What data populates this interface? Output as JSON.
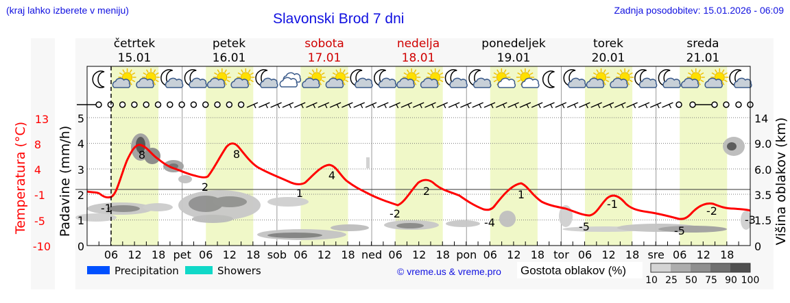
{
  "header": {
    "left_note": "(kraj lahko izberete v meniju)",
    "title": "Slavonski Brod 7 dni",
    "updated": "Zadnja posodobitev: 15.01.2026 - 06:09"
  },
  "days": [
    {
      "name": "četrtek",
      "date": "15.01",
      "weekend": false
    },
    {
      "name": "petek",
      "date": "16.01",
      "weekend": false
    },
    {
      "name": "sobota",
      "date": "17.01",
      "weekend": true
    },
    {
      "name": "nedelja",
      "date": "18.01",
      "weekend": true
    },
    {
      "name": "ponedeljek",
      "date": "19.01",
      "weekend": false
    },
    {
      "name": "torek",
      "date": "20.01",
      "weekend": false
    },
    {
      "name": "sreda",
      "date": "21.01",
      "weekend": false
    }
  ],
  "x_ticks": [
    "06",
    "12",
    "18",
    "pet",
    "06",
    "12",
    "18",
    "sob",
    "06",
    "12",
    "18",
    "ned",
    "06",
    "12",
    "18",
    "pon",
    "06",
    "12",
    "18",
    "tor",
    "06",
    "12",
    "18",
    "sre",
    "06",
    "12",
    "18"
  ],
  "axes": {
    "temp_label": "Temperatura (°C)",
    "temp_ticks": [
      "13",
      "8",
      "4",
      "-1",
      "-5",
      "-10"
    ],
    "precip_label": "Padavine (mm/h)",
    "precip_ticks": [
      "5",
      "4",
      "3",
      "2",
      "1",
      "0"
    ],
    "cloud_label": "Višina oblakov (km)",
    "cloud_ticks": [
      "14",
      "9.0",
      "6.0",
      "3.5",
      "1.5",
      "0"
    ]
  },
  "legend": {
    "precipitation": "Precipitation",
    "showers": "Showers",
    "precip_color": "#0050ff",
    "showers_color": "#10d8c8",
    "copyright": "© vreme.us & vreme.pro",
    "cloud_density_label": "Gostota oblakov (%)",
    "cloud_density_ticks": [
      "10",
      "25",
      "50",
      "75",
      "90",
      "100"
    ]
  },
  "colors": {
    "header_blue": "#1010e0",
    "temp_red": "#ff0000",
    "day_shade": "#f0f8c8",
    "weekend_red": "#d00000"
  },
  "chart_data": {
    "type": "line",
    "title": "Slavonski Brod 7 dni",
    "xlabel": "",
    "ylabel": "Temperatura (°C)",
    "ylim": [
      -10,
      13
    ],
    "secondary_axes": [
      {
        "label": "Padavine (mm/h)",
        "range": [
          0,
          5
        ]
      },
      {
        "label": "Višina oblakov (km)",
        "range": [
          0,
          14
        ]
      }
    ],
    "series": [
      {
        "name": "Temperatura",
        "x": [
          "15.01 02",
          "15.01 06",
          "15.01 12",
          "15.01 18",
          "16.01 00",
          "16.01 06",
          "16.01 12",
          "16.01 18",
          "17.01 00",
          "17.01 06",
          "17.01 12",
          "17.01 18",
          "18.01 00",
          "18.01 06",
          "18.01 12",
          "18.01 18",
          "19.01 00",
          "19.01 06",
          "19.01 12",
          "19.01 18",
          "20.01 00",
          "20.01 06",
          "20.01 12",
          "20.01 18",
          "21.01 00",
          "21.01 06",
          "21.01 12",
          "21.01 18",
          "22.01 00"
        ],
        "values": [
          -1,
          -1.5,
          8,
          5,
          3,
          2,
          8,
          4,
          2,
          1,
          4,
          1,
          -1,
          -2,
          2,
          0,
          -2,
          -4,
          1,
          -3,
          -4,
          -5,
          -1,
          -4,
          -4.5,
          -5,
          -2,
          -3,
          -3
        ]
      }
    ],
    "annotations": [
      {
        "x": "15.01 06",
        "label": "-1"
      },
      {
        "x": "15.01 13",
        "label": "8"
      },
      {
        "x": "16.01 00",
        "label": "2"
      },
      {
        "x": "16.01 13",
        "label": "8"
      },
      {
        "x": "17.01 02",
        "label": "1"
      },
      {
        "x": "17.01 14",
        "label": "4"
      },
      {
        "x": "18.01 04",
        "label": "-2"
      },
      {
        "x": "18.01 13",
        "label": "2"
      },
      {
        "x": "19.01 04",
        "label": "-4"
      },
      {
        "x": "19.01 14",
        "label": "1"
      },
      {
        "x": "20.01 05",
        "label": "-5"
      },
      {
        "x": "20.01 14",
        "label": "-1"
      },
      {
        "x": "21.01 05",
        "label": "-5"
      },
      {
        "x": "21.01 15",
        "label": "-2"
      },
      {
        "x": "22.01 00",
        "label": "-3"
      }
    ],
    "precipitation": [],
    "grid": true,
    "legend_position": "bottom"
  }
}
